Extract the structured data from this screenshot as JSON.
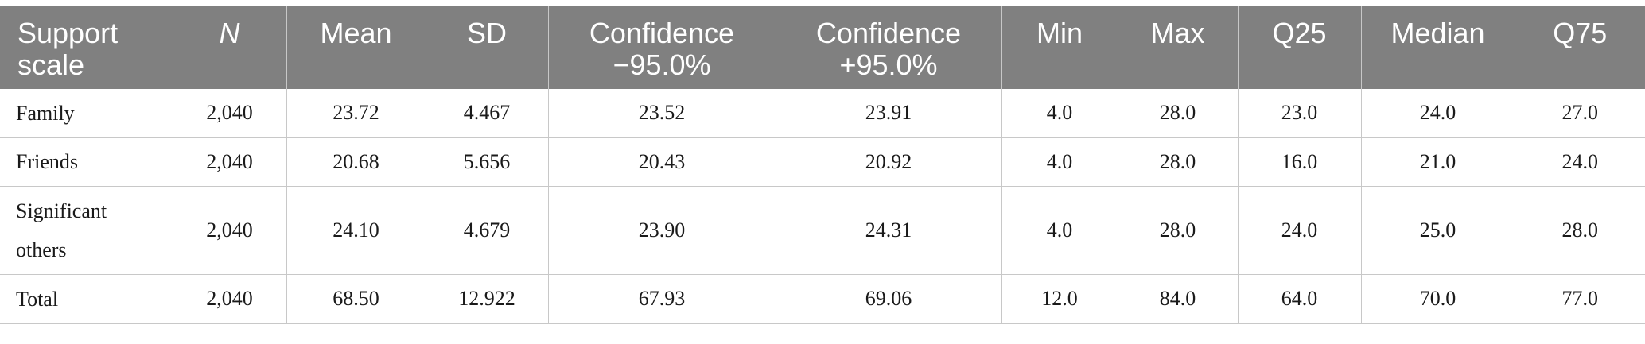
{
  "table": {
    "columns": [
      {
        "label": "Support scale",
        "italic": false
      },
      {
        "label": "N",
        "italic": true
      },
      {
        "label": "Mean",
        "italic": false
      },
      {
        "label": "SD",
        "italic": false
      },
      {
        "label": "Confidence −95.0%",
        "italic": false
      },
      {
        "label": "Confidence +95.0%",
        "italic": false
      },
      {
        "label": "Min",
        "italic": false
      },
      {
        "label": "Max",
        "italic": false
      },
      {
        "label": "Q25",
        "italic": false
      },
      {
        "label": "Median",
        "italic": false
      },
      {
        "label": "Q75",
        "italic": false
      }
    ],
    "header_lines": [
      [
        "Support",
        "scale"
      ],
      [
        "N"
      ],
      [
        "Mean"
      ],
      [
        "SD"
      ],
      [
        "Confidence",
        "−95.0%"
      ],
      [
        "Confidence",
        "+95.0%"
      ],
      [
        "Min"
      ],
      [
        "Max"
      ],
      [
        "Q25"
      ],
      [
        "Median"
      ],
      [
        "Q75"
      ]
    ],
    "rows": [
      {
        "label_lines": [
          "Family"
        ],
        "values": [
          "2,040",
          "23.72",
          "4.467",
          "23.52",
          "23.91",
          "4.0",
          "28.0",
          "23.0",
          "24.0",
          "27.0"
        ]
      },
      {
        "label_lines": [
          "Friends"
        ],
        "values": [
          "2,040",
          "20.68",
          "5.656",
          "20.43",
          "20.92",
          "4.0",
          "28.0",
          "16.0",
          "21.0",
          "24.0"
        ]
      },
      {
        "label_lines": [
          "Significant",
          "others"
        ],
        "values": [
          "2,040",
          "24.10",
          "4.679",
          "23.90",
          "24.31",
          "4.0",
          "28.0",
          "24.0",
          "25.0",
          "28.0"
        ]
      },
      {
        "label_lines": [
          "Total"
        ],
        "values": [
          "2,040",
          "68.50",
          "12.922",
          "67.93",
          "69.06",
          "12.0",
          "84.0",
          "64.0",
          "70.0",
          "77.0"
        ]
      }
    ]
  }
}
